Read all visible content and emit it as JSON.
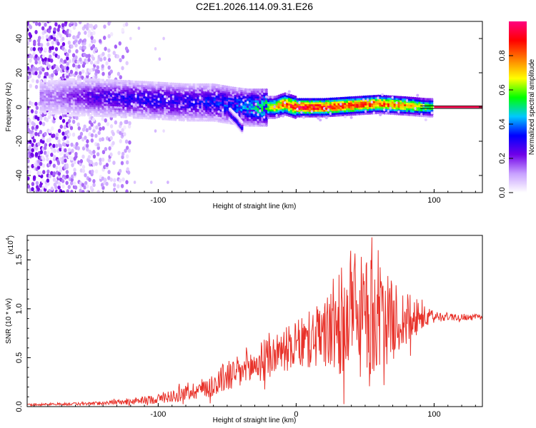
{
  "title": "C2E1.2026.114.09.31.E26",
  "chart_data": [
    {
      "type": "heatmap",
      "name": "spectrogram",
      "xlabel": "Height of straight line (km)",
      "ylabel": "Frequency (Hz)",
      "xlim": [
        -195,
        135
      ],
      "ylim": [
        -50,
        50
      ],
      "xticks": [
        -100,
        0,
        100
      ],
      "xtick_labels": [
        "-100",
        "",
        "100"
      ],
      "yticks": [
        -40,
        -20,
        0,
        20,
        40
      ],
      "ytick_labels": [
        "-40",
        "-20",
        "0",
        "20",
        "40"
      ],
      "colorbar": {
        "label": "Normalized spectral amplitude",
        "range": [
          0,
          1
        ],
        "ticks": [
          0.0,
          0.2,
          0.4,
          0.6,
          0.8
        ],
        "tick_labels": [
          "0.0",
          "0.2",
          "0.4",
          "0.6",
          "0.8"
        ],
        "colors": [
          "#ffffff",
          "#c8a0ff",
          "#7000e8",
          "#0000ff",
          "#00c8ff",
          "#00ff00",
          "#ffff00",
          "#ff8000",
          "#ff0000",
          "#ff0080"
        ]
      },
      "reference_line_hz": 0,
      "ridge": {
        "x": [
          -175,
          -150,
          -125,
          -100,
          -80,
          -60,
          -45,
          -35,
          -25,
          -15,
          -8,
          0,
          20,
          40,
          60,
          80,
          95
        ],
        "frequency_hz": [
          6,
          6,
          5,
          4,
          3,
          3,
          1,
          0,
          0,
          0,
          2,
          0,
          0,
          1,
          2,
          1,
          0
        ],
        "amplitude": [
          0.15,
          0.25,
          0.3,
          0.32,
          0.3,
          0.35,
          0.4,
          0.45,
          0.55,
          0.7,
          0.85,
          0.95,
          0.95,
          0.9,
          0.85,
          0.8,
          0.6
        ]
      },
      "branch": {
        "x": [
          -48,
          -43,
          -39
        ],
        "frequency_hz": [
          -4,
          -8,
          -12
        ]
      }
    },
    {
      "type": "line",
      "name": "snr",
      "xlabel": "Height of straight line (km)",
      "ylabel": "SNR (10 * v/v)",
      "yscale_label": "(x10",
      "yscale_exponent": "4",
      "xlim": [
        -195,
        135
      ],
      "ylim": [
        0,
        1.75
      ],
      "xticks": [
        -100,
        0,
        100
      ],
      "xtick_labels": [
        "-100",
        "0",
        "100"
      ],
      "yticks": [
        0.0,
        0.5,
        1.0,
        1.5
      ],
      "ytick_labels": [
        "0.0",
        "0.5",
        "1.0",
        "1.5"
      ],
      "series": [
        {
          "name": "SNR",
          "color": "#e8322a",
          "envelope": {
            "x": [
              -195,
              -150,
              -120,
              -100,
              -80,
              -60,
              -55,
              -40,
              -30,
              -20,
              -10,
              0,
              10,
              20,
              25,
              30,
              40,
              50,
              55,
              60,
              70,
              80,
              90,
              100,
              110,
              135
            ],
            "mean": [
              0.02,
              0.03,
              0.05,
              0.08,
              0.14,
              0.22,
              0.28,
              0.35,
              0.42,
              0.5,
              0.58,
              0.62,
              0.68,
              0.72,
              0.8,
              0.85,
              0.9,
              0.9,
              0.9,
              0.9,
              0.88,
              0.88,
              0.9,
              0.92,
              0.92,
              0.91
            ],
            "spread": [
              0.01,
              0.015,
              0.03,
              0.05,
              0.08,
              0.12,
              0.15,
              0.18,
              0.2,
              0.22,
              0.22,
              0.25,
              0.3,
              0.35,
              0.45,
              0.55,
              0.6,
              0.65,
              0.6,
              0.55,
              0.4,
              0.3,
              0.15,
              0.06,
              0.04,
              0.03
            ]
          },
          "peak": {
            "x": 55,
            "y": 1.73
          }
        }
      ]
    }
  ]
}
